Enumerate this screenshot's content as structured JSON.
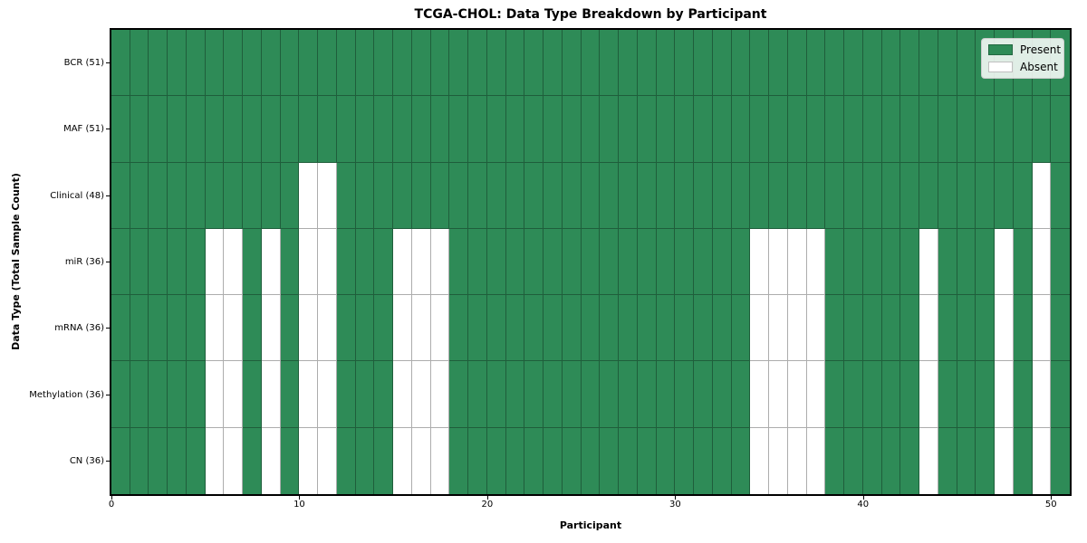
{
  "chart_data": {
    "type": "heatmap",
    "title": "TCGA-CHOL: Data Type Breakdown by Participant",
    "xlabel": "Participant",
    "ylabel": "Data Type (Total Sample Count)",
    "x_ticks": [
      0,
      10,
      20,
      30,
      40,
      50
    ],
    "x_range": [
      0,
      51
    ],
    "n_participants": 51,
    "grid": "cell-edges",
    "colors": {
      "present": "#2e8b57",
      "absent": "#ffffff",
      "cell_edge": "rgba(0,0,0,0.32)",
      "spine": "#000000",
      "legend_border": "#cccccc"
    },
    "legend": {
      "position": "upper-right",
      "entries": [
        {
          "label": "Present",
          "key": "present"
        },
        {
          "label": "Absent",
          "key": "absent"
        }
      ]
    },
    "rows": [
      {
        "label": "BCR (51)",
        "data_type": "bcr",
        "total_samples": 51,
        "absent_participants": []
      },
      {
        "label": "MAF (51)",
        "data_type": "maf",
        "total_samples": 51,
        "absent_participants": []
      },
      {
        "label": "Clinical (48)",
        "data_type": "clinical",
        "total_samples": 48,
        "absent_participants": [
          10,
          11,
          49
        ]
      },
      {
        "label": "miR (36)",
        "data_type": "mir",
        "total_samples": 36,
        "absent_participants": [
          5,
          6,
          8,
          10,
          11,
          15,
          16,
          17,
          34,
          35,
          36,
          37,
          43,
          47,
          49
        ]
      },
      {
        "label": "mRNA (36)",
        "data_type": "mrna",
        "total_samples": 36,
        "absent_participants": [
          5,
          6,
          8,
          10,
          11,
          15,
          16,
          17,
          34,
          35,
          36,
          37,
          43,
          47,
          49
        ]
      },
      {
        "label": "Methylation (36)",
        "data_type": "methylation",
        "total_samples": 36,
        "absent_participants": [
          5,
          6,
          8,
          10,
          11,
          15,
          16,
          17,
          34,
          35,
          36,
          37,
          43,
          47,
          49
        ]
      },
      {
        "label": "CN (36)",
        "data_type": "cn",
        "total_samples": 36,
        "absent_participants": [
          5,
          6,
          8,
          10,
          11,
          15,
          16,
          17,
          34,
          35,
          36,
          37,
          43,
          47,
          49
        ]
      }
    ]
  }
}
